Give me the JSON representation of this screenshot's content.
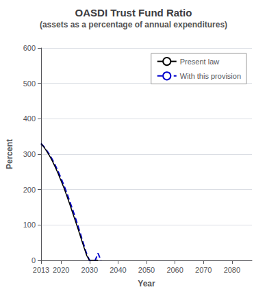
{
  "chart_data": {
    "type": "line",
    "title": "OASDI Trust Fund Ratio",
    "subtitle": "(assets as a percentage of annual expenditures)",
    "xlabel": "Year",
    "ylabel": "Percent",
    "xlim": [
      2013,
      2087
    ],
    "ylim": [
      0,
      600
    ],
    "xticks": [
      2013,
      2020,
      2030,
      2040,
      2050,
      2060,
      2070,
      2080
    ],
    "yticks": [
      0,
      100,
      200,
      300,
      400,
      500,
      600
    ],
    "grid": true,
    "legend": "upper right",
    "series": [
      {
        "name": "Present law",
        "color": "#000000",
        "line_style": "solid",
        "x": [
          2013,
          2014,
          2015,
          2016,
          2017,
          2018,
          2019,
          2020,
          2021,
          2022,
          2023,
          2024,
          2025,
          2026,
          2027,
          2028,
          2029,
          2030,
          2031,
          2032,
          2033
        ],
        "values": [
          330,
          320,
          308,
          295,
          280,
          263,
          245,
          225,
          205,
          183,
          160,
          136,
          112,
          88,
          63,
          38,
          14,
          0,
          0,
          0,
          0
        ]
      },
      {
        "name": "With this provision",
        "color": "#0000cc",
        "line_style": "dashed",
        "x": [
          2013,
          2014,
          2015,
          2016,
          2017,
          2018,
          2019,
          2020,
          2021,
          2022,
          2023,
          2024,
          2025,
          2026,
          2027,
          2028,
          2029,
          2030,
          2031,
          2032,
          2033,
          2034
        ],
        "values": [
          330,
          321,
          310,
          298,
          284,
          268,
          251,
          232,
          212,
          191,
          168,
          145,
          121,
          96,
          70,
          44,
          18,
          0,
          0,
          0,
          20,
          0
        ]
      }
    ]
  }
}
